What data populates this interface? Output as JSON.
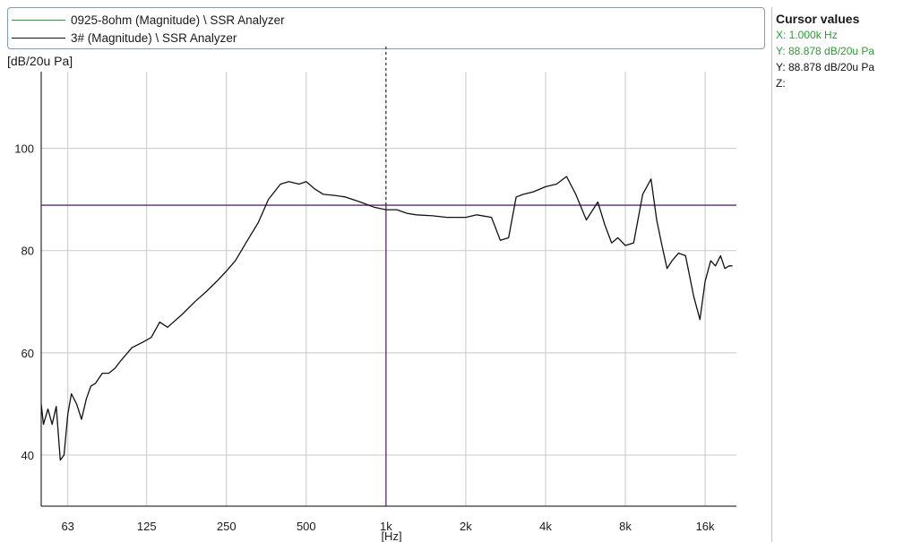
{
  "legend": {
    "items": [
      {
        "label": "0925-8ohm (Magnitude) \\ SSR Analyzer",
        "color": "#2e9a33"
      },
      {
        "label": "3# (Magnitude) \\ SSR Analyzer",
        "color": "#111111"
      }
    ]
  },
  "cursor_panel": {
    "title": "Cursor values",
    "lines": [
      {
        "text": "X: 1.000k Hz",
        "color": "#2e9a33"
      },
      {
        "text": "Y: 88.878 dB/20u Pa",
        "color": "#2e9a33"
      },
      {
        "text": "Y: 88.878 dB/20u Pa",
        "color": "#111111"
      },
      {
        "text": "Z:",
        "color": "#111111"
      }
    ]
  },
  "colors": {
    "cursor_line": "#5b2a6e",
    "grid": "#c8c8c8",
    "axis": "#000000"
  },
  "chart_data": {
    "type": "line",
    "title": "",
    "xlabel": "[Hz]",
    "ylabel": "[dB/20u Pa]",
    "x_scale": "log",
    "xlim": [
      50,
      21000
    ],
    "ylim": [
      30,
      115
    ],
    "grid": true,
    "legend_position": "top",
    "x_ticks": [
      {
        "value": 63,
        "label": "63"
      },
      {
        "value": 125,
        "label": "125"
      },
      {
        "value": 250,
        "label": "250"
      },
      {
        "value": 500,
        "label": "500"
      },
      {
        "value": 1000,
        "label": "1k"
      },
      {
        "value": 2000,
        "label": "2k"
      },
      {
        "value": 4000,
        "label": "4k"
      },
      {
        "value": 8000,
        "label": "8k"
      },
      {
        "value": 16000,
        "label": "16k"
      }
    ],
    "y_ticks": [
      40,
      60,
      80,
      100
    ],
    "cursor": {
      "x": 1000,
      "y": 88.878
    },
    "series": [
      {
        "name": "3# (Magnitude) \\ SSR Analyzer",
        "color": "#111111",
        "x": [
          50,
          51,
          53,
          55,
          57,
          59,
          61,
          63,
          65,
          68,
          71,
          74,
          77,
          80,
          85,
          90,
          95,
          100,
          110,
          120,
          130,
          140,
          150,
          170,
          190,
          210,
          230,
          250,
          270,
          300,
          330,
          360,
          400,
          430,
          470,
          500,
          540,
          580,
          640,
          700,
          800,
          900,
          1000,
          1100,
          1200,
          1300,
          1500,
          1700,
          2000,
          2200,
          2500,
          2700,
          2900,
          3100,
          3300,
          3600,
          4000,
          4400,
          4800,
          5200,
          5700,
          6300,
          6700,
          7100,
          7500,
          8000,
          8600,
          9300,
          10000,
          10500,
          11000,
          11500,
          12000,
          12700,
          13500,
          14500,
          15300,
          16000,
          16800,
          17500,
          18300,
          19000,
          19700,
          20300
        ],
        "y": [
          50,
          46,
          49,
          46,
          49.5,
          39,
          40,
          48,
          52,
          50,
          47,
          51,
          53.5,
          54,
          56,
          56,
          57,
          58.5,
          61,
          62,
          63,
          66,
          65,
          67.5,
          70,
          72,
          74,
          76,
          78,
          82,
          85.5,
          90,
          93,
          93.5,
          93,
          93.5,
          92,
          91,
          90.8,
          90.5,
          89.5,
          88.5,
          88,
          88,
          87.3,
          87,
          86.8,
          86.5,
          86.5,
          87,
          86.5,
          82,
          82.5,
          90.5,
          91,
          91.5,
          92.5,
          93,
          94.5,
          91,
          86,
          89.5,
          85,
          81.5,
          82.5,
          81,
          81.5,
          91,
          94,
          86,
          81,
          76.5,
          78,
          79.5,
          79,
          71,
          66.5,
          74,
          78,
          77,
          79,
          76.5,
          77,
          77
        ]
      }
    ]
  }
}
